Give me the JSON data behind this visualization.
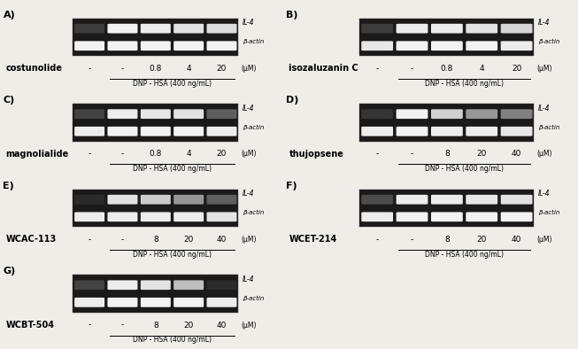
{
  "panels": [
    {
      "label": "A)",
      "compound": "costunolide",
      "concentrations": [
        "-",
        "0.8",
        "4",
        "20"
      ],
      "units": "(μM)",
      "dnp_label": "DNP - HSA (400 ng/mL)",
      "n_lanes": 5,
      "il4_intensities": [
        0.15,
        0.95,
        0.92,
        0.88,
        0.85
      ],
      "bactin_intensities": [
        0.95,
        0.95,
        0.95,
        0.95,
        0.95
      ]
    },
    {
      "label": "B)",
      "compound": "isozaluzanin C",
      "concentrations": [
        "-",
        "0.8",
        "4",
        "20"
      ],
      "units": "(μM)",
      "dnp_label": "DNP - HSA (400 ng/mL)",
      "n_lanes": 5,
      "il4_intensities": [
        0.15,
        0.92,
        0.92,
        0.88,
        0.82
      ],
      "bactin_intensities": [
        0.9,
        0.95,
        0.95,
        0.95,
        0.92
      ]
    },
    {
      "label": "C)",
      "compound": "magnolialide",
      "concentrations": [
        "-",
        "0.8",
        "4",
        "20"
      ],
      "units": "(μM)",
      "dnp_label": "DNP - HSA (400 ng/mL)",
      "n_lanes": 5,
      "il4_intensities": [
        0.18,
        0.92,
        0.9,
        0.88,
        0.3
      ],
      "bactin_intensities": [
        0.92,
        0.95,
        0.95,
        0.95,
        0.92
      ]
    },
    {
      "label": "D)",
      "compound": "thujopsene",
      "concentrations": [
        "-",
        "8",
        "20",
        "40"
      ],
      "units": "(μM)",
      "dnp_label": "DNP - HSA (400 ng/mL)",
      "n_lanes": 5,
      "il4_intensities": [
        0.12,
        0.95,
        0.8,
        0.55,
        0.45
      ],
      "bactin_intensities": [
        0.92,
        0.95,
        0.92,
        0.92,
        0.9
      ]
    },
    {
      "label": "E)",
      "compound": "WCAC-113",
      "concentrations": [
        "-",
        "8",
        "20",
        "40"
      ],
      "units": "(μM)",
      "dnp_label": "DNP - HSA (400 ng/mL)",
      "n_lanes": 5,
      "il4_intensities": [
        0.08,
        0.88,
        0.78,
        0.55,
        0.3
      ],
      "bactin_intensities": [
        0.92,
        0.92,
        0.92,
        0.92,
        0.88
      ]
    },
    {
      "label": "F)",
      "compound": "WCET-214",
      "concentrations": [
        "-",
        "8",
        "20",
        "40"
      ],
      "units": "(μM)",
      "dnp_label": "DNP - HSA (400 ng/mL)",
      "n_lanes": 5,
      "il4_intensities": [
        0.22,
        0.92,
        0.92,
        0.9,
        0.88
      ],
      "bactin_intensities": [
        0.92,
        0.95,
        0.95,
        0.95,
        0.95
      ]
    },
    {
      "label": "G)",
      "compound": "WCBT-504",
      "concentrations": [
        "-",
        "8",
        "20",
        "40"
      ],
      "units": "(μM)",
      "dnp_label": "DNP - HSA (400 ng/mL)",
      "n_lanes": 5,
      "il4_intensities": [
        0.18,
        0.92,
        0.88,
        0.72,
        0.08
      ],
      "bactin_intensities": [
        0.92,
        0.95,
        0.95,
        0.95,
        0.92
      ]
    }
  ],
  "bg_color": "#f0ece8",
  "gel_bg": "#1a1a1a",
  "band_color_white": "#ffffff",
  "label_fontsize": 6.5,
  "panel_label_fontsize": 8,
  "compound_fontsize": 7
}
